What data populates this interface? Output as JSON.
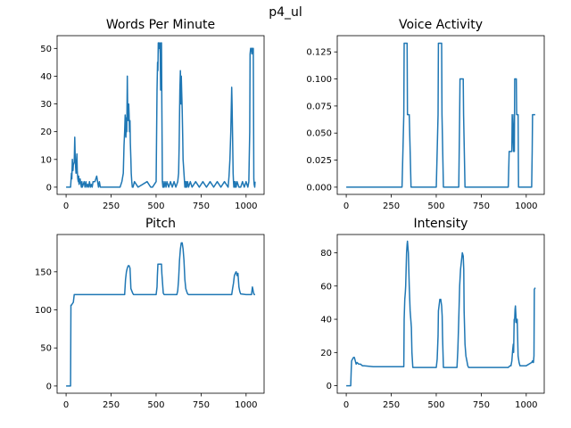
{
  "figure": {
    "suptitle": "p4_ul",
    "line_color": "#1f77b4"
  },
  "chart_data": [
    {
      "type": "line",
      "title": "Words Per Minute",
      "xlabel": "",
      "ylabel": "",
      "xlim": [
        -50,
        1100
      ],
      "ylim": [
        -2.6,
        54.6
      ],
      "xticks": [
        0,
        250,
        500,
        750,
        1000
      ],
      "yticks": [
        0,
        10,
        20,
        30,
        40,
        50
      ],
      "grid": false,
      "series": [
        {
          "x": [
            0,
            25,
            30,
            32,
            35,
            38,
            40,
            45,
            48,
            50,
            53,
            55,
            58,
            60,
            62,
            65,
            68,
            70,
            72,
            75,
            78,
            80,
            85,
            88,
            90,
            95,
            100,
            105,
            110,
            115,
            120,
            125,
            130,
            135,
            140,
            145,
            150,
            160,
            170,
            175,
            180,
            185,
            190,
            200,
            210,
            220,
            230,
            240,
            250,
            260,
            270,
            280,
            290,
            300,
            310,
            318,
            322,
            325,
            328,
            330,
            332,
            335,
            337,
            340,
            342,
            345,
            348,
            350,
            352,
            355,
            357,
            360,
            362,
            365,
            368,
            372,
            380,
            400,
            450,
            470,
            480,
            500,
            505,
            508,
            510,
            512,
            515,
            518,
            520,
            523,
            525,
            527,
            530,
            532,
            535,
            538,
            540,
            542,
            545,
            550,
            555,
            560,
            570,
            580,
            590,
            600,
            610,
            620,
            625,
            628,
            630,
            632,
            635,
            638,
            640,
            642,
            645,
            648,
            650,
            652,
            655,
            658,
            660,
            662,
            665,
            668,
            670,
            675,
            680,
            690,
            700,
            720,
            740,
            760,
            780,
            800,
            820,
            840,
            860,
            880,
            900,
            905,
            910,
            915,
            920,
            922,
            925,
            928,
            930,
            932,
            935,
            938,
            940,
            945,
            950,
            960,
            970,
            980,
            990,
            1000,
            1010,
            1015,
            1020,
            1022,
            1025,
            1028,
            1030,
            1032,
            1035,
            1038,
            1040,
            1043,
            1045,
            1048,
            1050
          ],
          "y": [
            0,
            0,
            5,
            3,
            10,
            6,
            8,
            9,
            18,
            12,
            7,
            5,
            8,
            12,
            6,
            3,
            2,
            4,
            1,
            2,
            3,
            2,
            0,
            2,
            0,
            1,
            2,
            0,
            2,
            0,
            1,
            0,
            2,
            0,
            1,
            0,
            2,
            2,
            4,
            2,
            0,
            2,
            0,
            0,
            0,
            0,
            0,
            0,
            0,
            0,
            0,
            0,
            0,
            0,
            2,
            5,
            15,
            20,
            26,
            22,
            18,
            25,
            20,
            40,
            28,
            24,
            30,
            26,
            20,
            24,
            16,
            10,
            5,
            2,
            0,
            0,
            2,
            0,
            2,
            0,
            0,
            2,
            35,
            45,
            42,
            52,
            52,
            50,
            52,
            48,
            35,
            52,
            52,
            30,
            2,
            0,
            2,
            0,
            0,
            2,
            0,
            2,
            0,
            2,
            0,
            2,
            0,
            2,
            5,
            15,
            25,
            35,
            42,
            30,
            40,
            35,
            28,
            18,
            10,
            8,
            5,
            2,
            0,
            2,
            0,
            2,
            0,
            2,
            0,
            2,
            0,
            2,
            0,
            2,
            0,
            2,
            0,
            2,
            0,
            2,
            0,
            4,
            10,
            20,
            36,
            30,
            18,
            5,
            2,
            0,
            2,
            0,
            2,
            0,
            2,
            0,
            0,
            2,
            0,
            2,
            0,
            2,
            20,
            48,
            50,
            49,
            50,
            48,
            50,
            49,
            50,
            3,
            1,
            0,
            2
          ]
        }
      ]
    },
    {
      "type": "line",
      "title": "Voice Activity",
      "xlabel": "",
      "ylabel": "",
      "xlim": [
        -50,
        1100
      ],
      "ylim": [
        -0.00667,
        0.14
      ],
      "xticks": [
        0,
        250,
        500,
        750,
        1000
      ],
      "yticks": [
        "0.000",
        "0.025",
        "0.050",
        "0.075",
        "0.100",
        "0.125"
      ],
      "grid": false,
      "series": [
        {
          "x": [
            0,
            310,
            315,
            320,
            322,
            338,
            340,
            345,
            350,
            360,
            365,
            500,
            505,
            510,
            512,
            530,
            532,
            540,
            545,
            600,
            625,
            630,
            632,
            650,
            652,
            660,
            665,
            900,
            905,
            920,
            922,
            930,
            932,
            934,
            936,
            945,
            947,
            955,
            957,
            1000,
            1030,
            1033,
            1035,
            1037,
            1048,
            1050
          ],
          "y": [
            0,
            0,
            0.033,
            0.067,
            0.133,
            0.133,
            0.067,
            0.067,
            0.067,
            0,
            0,
            0,
            0.033,
            0.067,
            0.133,
            0.133,
            0.067,
            0,
            0,
            0,
            0,
            0.067,
            0.1,
            0.1,
            0.067,
            0,
            0,
            0,
            0.033,
            0.033,
            0.067,
            0.033,
            0.067,
            0.033,
            0.1,
            0.1,
            0.067,
            0.067,
            0,
            0,
            0,
            0.033,
            0.067,
            0.067,
            0.067,
            0.067
          ]
        }
      ]
    },
    {
      "type": "line",
      "title": "Pitch",
      "xlabel": "",
      "ylabel": "",
      "xlim": [
        -50,
        1100
      ],
      "ylim": [
        -9.5,
        199
      ],
      "xticks": [
        0,
        250,
        500,
        750,
        1000
      ],
      "yticks": [
        0,
        50,
        100,
        150
      ],
      "grid": false,
      "series": [
        {
          "x": [
            0,
            25,
            27,
            29,
            40,
            45,
            50,
            100,
            200,
            300,
            310,
            325,
            330,
            335,
            340,
            345,
            350,
            355,
            358,
            360,
            365,
            370,
            375,
            380,
            400,
            450,
            500,
            505,
            507,
            510,
            512,
            530,
            532,
            540,
            545,
            560,
            600,
            615,
            620,
            625,
            630,
            635,
            640,
            645,
            650,
            655,
            660,
            665,
            670,
            675,
            680,
            700,
            800,
            900,
            920,
            925,
            930,
            935,
            940,
            945,
            950,
            955,
            960,
            965,
            970,
            1000,
            1030,
            1035,
            1037,
            1040,
            1043,
            1046,
            1050
          ],
          "y": [
            0,
            0,
            106,
            106,
            110,
            120,
            120,
            120,
            120,
            120,
            120,
            120,
            140,
            150,
            155,
            158,
            158,
            155,
            140,
            128,
            125,
            122,
            120,
            120,
            120,
            120,
            120,
            130,
            145,
            160,
            160,
            160,
            148,
            122,
            120,
            120,
            120,
            120,
            125,
            140,
            165,
            180,
            188,
            188,
            180,
            165,
            140,
            128,
            124,
            121,
            120,
            120,
            120,
            120,
            120,
            128,
            135,
            145,
            148,
            150,
            145,
            148,
            130,
            124,
            121,
            120,
            120,
            130,
            128,
            124,
            121,
            120,
            120
          ]
        }
      ]
    },
    {
      "type": "line",
      "title": "Intensity",
      "xlabel": "",
      "ylabel": "",
      "xlim": [
        -50,
        1100
      ],
      "ylim": [
        -4.5,
        91
      ],
      "xticks": [
        0,
        250,
        500,
        750,
        1000
      ],
      "yticks": [
        0,
        20,
        40,
        60,
        80
      ],
      "grid": false,
      "series": [
        {
          "x": [
            0,
            25,
            28,
            30,
            35,
            40,
            45,
            50,
            55,
            60,
            70,
            80,
            90,
            100,
            150,
            200,
            250,
            300,
            320,
            322,
            325,
            328,
            330,
            335,
            338,
            340,
            345,
            350,
            355,
            360,
            362,
            365,
            370,
            380,
            420,
            480,
            500,
            505,
            510,
            512,
            520,
            525,
            530,
            533,
            535,
            540,
            560,
            600,
            615,
            620,
            625,
            630,
            635,
            640,
            645,
            650,
            653,
            655,
            660,
            665,
            670,
            675,
            680,
            700,
            800,
            900,
            910,
            915,
            920,
            925,
            928,
            930,
            933,
            935,
            938,
            940,
            945,
            950,
            955,
            960,
            965,
            1000,
            1030,
            1035,
            1038,
            1040,
            1043,
            1045,
            1050
          ],
          "y": [
            0,
            0,
            10,
            15,
            16,
            17,
            17,
            15,
            13,
            14,
            13,
            13,
            12,
            12,
            11.5,
            11.5,
            11.5,
            11.5,
            11.5,
            40,
            52,
            56,
            60,
            80,
            85,
            87,
            80,
            60,
            45,
            38,
            35,
            20,
            11,
            11,
            11,
            11,
            11,
            16,
            30,
            45,
            52,
            52,
            48,
            42,
            30,
            11,
            11,
            11,
            11,
            22,
            40,
            60,
            70,
            75,
            80,
            78,
            70,
            45,
            25,
            18,
            15,
            12,
            11,
            11,
            11,
            11,
            12,
            12,
            15,
            22,
            25,
            20,
            40,
            38,
            46,
            48,
            38,
            40,
            18,
            14,
            12,
            12,
            14,
            15,
            14,
            14,
            18,
            58,
            59
          ]
        }
      ]
    }
  ]
}
